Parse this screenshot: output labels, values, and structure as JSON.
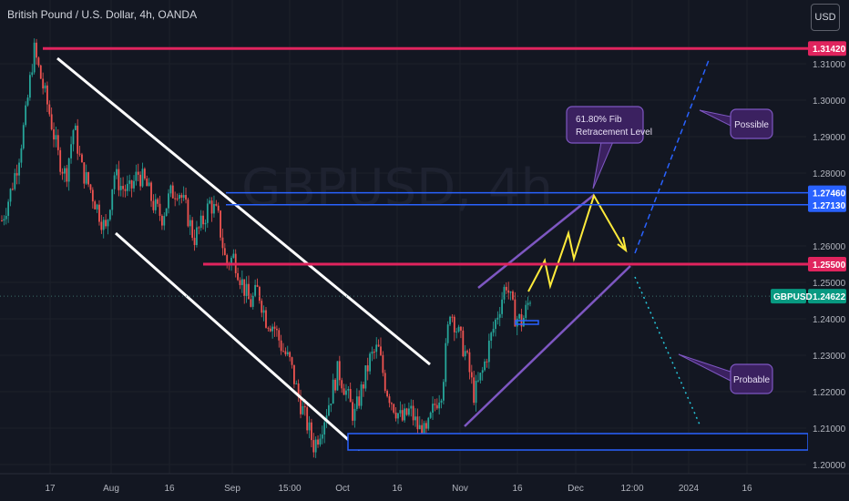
{
  "header": {
    "instrument": "British Pound / U.S. Dollar, 4h, OANDA",
    "currency_button": "USD",
    "watermark": "GBPUSD, 4h"
  },
  "colors": {
    "background": "#131722",
    "candle_up": "#26a69a",
    "candle_down": "#ef5350",
    "resistance": "#e0245e",
    "zone_blue": "#2962ff",
    "channel_white": "#ffffff",
    "channel_purple": "#7e57c2",
    "projection_yellow": "#ffeb3b",
    "projection_blue": "#2962ff",
    "projection_green": "#26c6da",
    "price_tag": "#089981"
  },
  "annotations": {
    "fib": "61.80% Fib\nRetracement Level",
    "possible": "Possible",
    "probable": "Probable"
  },
  "chart_data": {
    "type": "candlestick",
    "symbol": "GBPUSD",
    "timeframe": "4h",
    "current_price": 1.24622,
    "y_ticks": [
      1.31,
      1.3,
      1.29,
      1.28,
      1.26,
      1.25,
      1.24,
      1.23,
      1.22,
      1.21,
      1.2
    ],
    "x_ticks": [
      "17",
      "Aug",
      "16",
      "Sep",
      "15:00",
      "Oct",
      "16",
      "Nov",
      "16",
      "Dec",
      "12:00",
      "2024",
      "16"
    ],
    "levels": [
      {
        "label": "1.31420",
        "value": 1.3142,
        "kind": "resistance"
      },
      {
        "label": "1.27460",
        "value": 1.2746,
        "kind": "zone"
      },
      {
        "label": "1.27130",
        "value": 1.2713,
        "kind": "zone"
      },
      {
        "label": "1.25500",
        "value": 1.255,
        "kind": "resistance"
      },
      {
        "label": "1.21000",
        "value": 1.21,
        "kind": "support"
      }
    ],
    "price_path": [
      1.267,
      1.274,
      1.283,
      1.296,
      1.314,
      1.305,
      1.296,
      1.285,
      1.279,
      1.293,
      1.281,
      1.276,
      1.27,
      1.264,
      1.28,
      1.276,
      1.275,
      1.28,
      1.277,
      1.271,
      1.268,
      1.274,
      1.276,
      1.27,
      1.262,
      1.266,
      1.272,
      1.268,
      1.255,
      1.257,
      1.25,
      1.244,
      1.248,
      1.24,
      1.238,
      1.232,
      1.228,
      1.219,
      1.212,
      1.205,
      1.211,
      1.218,
      1.226,
      1.22,
      1.213,
      1.221,
      1.229,
      1.232,
      1.221,
      1.216,
      1.212,
      1.215,
      1.21,
      1.208,
      1.216,
      1.221,
      1.243,
      1.236,
      1.23,
      1.219,
      1.225,
      1.234,
      1.242,
      1.25,
      1.241,
      1.239,
      1.246
    ]
  }
}
